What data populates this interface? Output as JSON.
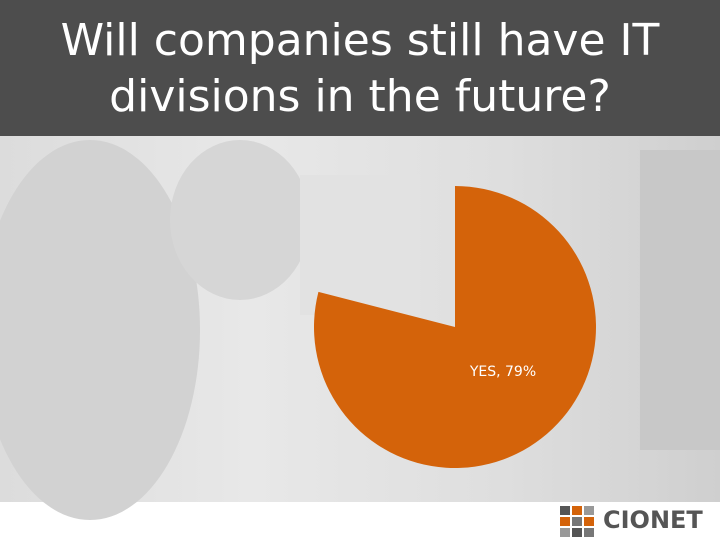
{
  "chart_data": {
    "type": "pie",
    "title": "Will companies still have IT divisions in the future?",
    "categories": [
      "YES"
    ],
    "values": [
      79
    ],
    "value_labels": [
      "YES, 79%"
    ],
    "color": "#d4630a"
  },
  "logo": "CIONET"
}
